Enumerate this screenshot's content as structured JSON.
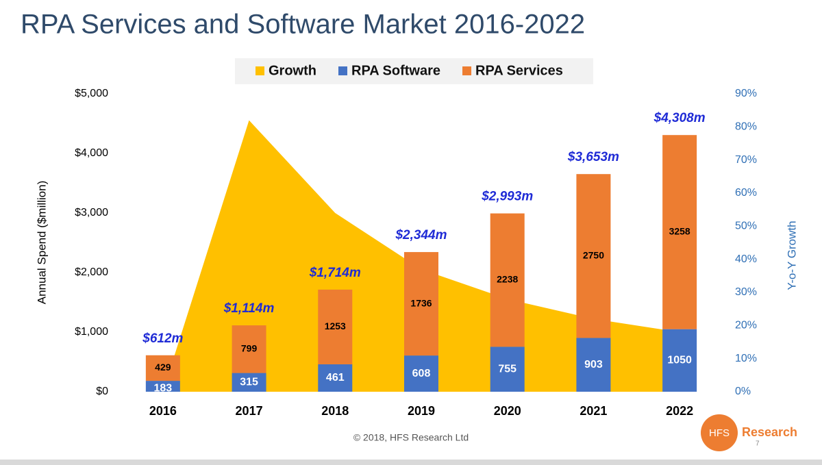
{
  "title": "RPA Services and Software Market 2016-2022",
  "footer": {
    "copyright": "© 2018, HFS Research Ltd",
    "logo": "HFS",
    "logo_text": "Research",
    "page": "7"
  },
  "chart_data": {
    "type": "bar",
    "categories": [
      "2016",
      "2017",
      "2018",
      "2019",
      "2020",
      "2021",
      "2022"
    ],
    "series": [
      {
        "name": "Growth",
        "color": "#FFC000",
        "type": "area",
        "axis": "y2",
        "values": [
          0,
          82,
          54,
          37,
          28,
          22,
          18
        ]
      },
      {
        "name": "RPA Software",
        "color": "#4472C4",
        "values": [
          183,
          315,
          461,
          608,
          755,
          903,
          1050
        ]
      },
      {
        "name": "RPA Services",
        "color": "#ED7D31",
        "values": [
          429,
          799,
          1253,
          1736,
          2238,
          2750,
          3258
        ]
      }
    ],
    "totals": {
      "values": [
        612,
        1114,
        1714,
        2344,
        2993,
        3653,
        4308
      ],
      "value_labels": [
        "$612m",
        "$1,114m",
        "$1,714m",
        "$2,344m",
        "$2,993m",
        "$3,653m",
        "$4,308m"
      ]
    },
    "ylabel": "Annual Spend ($million)",
    "y2label": "Y-o-Y Growth",
    "ylim": [
      0,
      5000
    ],
    "yticks": [
      {
        "value": 0,
        "label": "$0"
      },
      {
        "value": 1000,
        "label": "$1,000"
      },
      {
        "value": 2000,
        "label": "$2,000"
      },
      {
        "value": 3000,
        "label": "$3,000"
      },
      {
        "value": 4000,
        "label": "$4,000"
      },
      {
        "value": 5000,
        "label": "$5,000"
      }
    ],
    "y2lim": [
      0,
      90
    ],
    "y2ticks": [
      {
        "value": 0,
        "label": "0%"
      },
      {
        "value": 10,
        "label": "10%"
      },
      {
        "value": 20,
        "label": "20%"
      },
      {
        "value": 30,
        "label": "30%"
      },
      {
        "value": 40,
        "label": "40%"
      },
      {
        "value": 50,
        "label": "50%"
      },
      {
        "value": 60,
        "label": "60%"
      },
      {
        "value": 70,
        "label": "70%"
      },
      {
        "value": 80,
        "label": "80%"
      },
      {
        "value": 90,
        "label": "90%"
      }
    ],
    "legend": "top"
  }
}
